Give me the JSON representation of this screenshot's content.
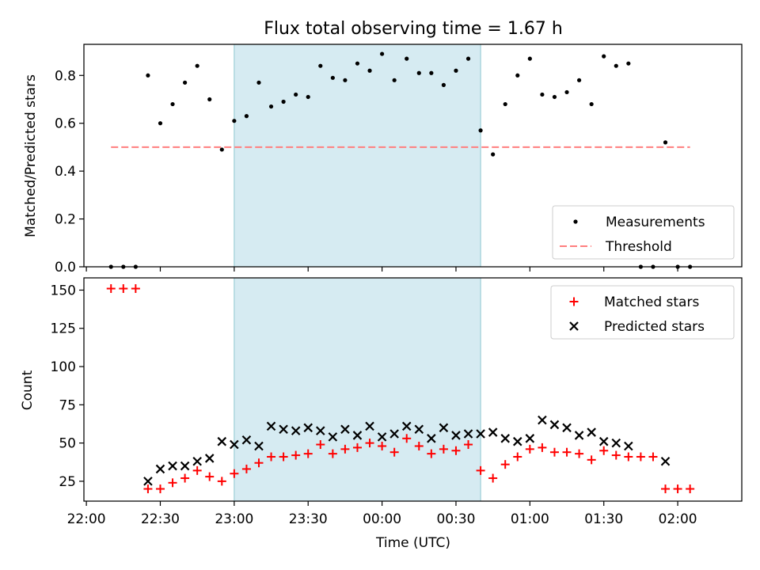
{
  "figure_title": "Flux total observing time = 1.67 h",
  "chart_data": [
    {
      "type": "scatter",
      "title": "Flux total observing time = 1.67 h",
      "xlabel": "",
      "ylabel": "Matched/Predicted stars",
      "xlim": [
        "21:59",
        "02:26"
      ],
      "ylim": [
        0,
        0.93
      ],
      "yticks": [
        "0.0",
        "0.2",
        "0.4",
        "0.6",
        "0.8"
      ],
      "shaded_span": [
        "23:00",
        "00:40"
      ],
      "legend_position": "lower right",
      "series": [
        {
          "name": "Measurements",
          "marker": "dot",
          "color": "#000000",
          "points": [
            [
              "22:10",
              0.0
            ],
            [
              "22:15",
              0.0
            ],
            [
              "22:20",
              0.0
            ],
            [
              "22:25",
              0.8
            ],
            [
              "22:30",
              0.6
            ],
            [
              "22:35",
              0.68
            ],
            [
              "22:40",
              0.77
            ],
            [
              "22:45",
              0.84
            ],
            [
              "22:50",
              0.7
            ],
            [
              "22:55",
              0.49
            ],
            [
              "23:00",
              0.61
            ],
            [
              "23:05",
              0.63
            ],
            [
              "23:10",
              0.77
            ],
            [
              "23:15",
              0.67
            ],
            [
              "23:20",
              0.69
            ],
            [
              "23:25",
              0.72
            ],
            [
              "23:30",
              0.71
            ],
            [
              "23:35",
              0.84
            ],
            [
              "23:40",
              0.79
            ],
            [
              "23:45",
              0.78
            ],
            [
              "23:50",
              0.85
            ],
            [
              "23:55",
              0.82
            ],
            [
              "00:00",
              0.89
            ],
            [
              "00:05",
              0.78
            ],
            [
              "00:10",
              0.87
            ],
            [
              "00:15",
              0.81
            ],
            [
              "00:20",
              0.81
            ],
            [
              "00:25",
              0.76
            ],
            [
              "00:30",
              0.82
            ],
            [
              "00:35",
              0.87
            ],
            [
              "00:40",
              0.57
            ],
            [
              "00:45",
              0.47
            ],
            [
              "00:50",
              0.68
            ],
            [
              "00:55",
              0.8
            ],
            [
              "01:00",
              0.87
            ],
            [
              "01:05",
              0.72
            ],
            [
              "01:10",
              0.71
            ],
            [
              "01:15",
              0.73
            ],
            [
              "01:20",
              0.78
            ],
            [
              "01:25",
              0.68
            ],
            [
              "01:30",
              0.88
            ],
            [
              "01:35",
              0.84
            ],
            [
              "01:40",
              0.85
            ],
            [
              "01:45",
              0.0
            ],
            [
              "01:50",
              0.0
            ],
            [
              "01:55",
              0.52
            ],
            [
              "02:00",
              0.0
            ],
            [
              "02:05",
              0.0
            ]
          ]
        },
        {
          "name": "Threshold",
          "marker": "dashed-line",
          "color": "#ff7f7f",
          "points": [
            [
              "22:10",
              0.5
            ],
            [
              "02:05",
              0.5
            ]
          ]
        }
      ]
    },
    {
      "type": "scatter",
      "title": "",
      "xlabel": "Time (UTC)",
      "ylabel": "Count",
      "xlim": [
        "21:59",
        "02:26"
      ],
      "ylim": [
        12,
        158
      ],
      "yticks": [
        "25",
        "50",
        "75",
        "100",
        "125",
        "150"
      ],
      "xticks": [
        "22:00",
        "22:30",
        "23:00",
        "23:30",
        "00:00",
        "00:30",
        "01:00",
        "01:30",
        "02:00"
      ],
      "shaded_span": [
        "23:00",
        "00:40"
      ],
      "legend_position": "upper right",
      "series": [
        {
          "name": "Matched stars",
          "marker": "plus",
          "color": "#ff0000",
          "points": [
            [
              "22:10",
              151
            ],
            [
              "22:15",
              151
            ],
            [
              "22:20",
              151
            ],
            [
              "22:25",
              20
            ],
            [
              "22:30",
              20
            ],
            [
              "22:35",
              24
            ],
            [
              "22:40",
              27
            ],
            [
              "22:45",
              32
            ],
            [
              "22:50",
              28
            ],
            [
              "22:55",
              25
            ],
            [
              "23:00",
              30
            ],
            [
              "23:05",
              33
            ],
            [
              "23:10",
              37
            ],
            [
              "23:15",
              41
            ],
            [
              "23:20",
              41
            ],
            [
              "23:25",
              42
            ],
            [
              "23:30",
              43
            ],
            [
              "23:35",
              49
            ],
            [
              "23:40",
              43
            ],
            [
              "23:45",
              46
            ],
            [
              "23:50",
              47
            ],
            [
              "23:55",
              50
            ],
            [
              "00:00",
              48
            ],
            [
              "00:05",
              44
            ],
            [
              "00:10",
              53
            ],
            [
              "00:15",
              48
            ],
            [
              "00:20",
              43
            ],
            [
              "00:25",
              46
            ],
            [
              "00:30",
              45
            ],
            [
              "00:35",
              49
            ],
            [
              "00:40",
              32
            ],
            [
              "00:45",
              27
            ],
            [
              "00:50",
              36
            ],
            [
              "00:55",
              41
            ],
            [
              "01:00",
              46
            ],
            [
              "01:05",
              47
            ],
            [
              "01:10",
              44
            ],
            [
              "01:15",
              44
            ],
            [
              "01:20",
              43
            ],
            [
              "01:25",
              39
            ],
            [
              "01:30",
              45
            ],
            [
              "01:35",
              42
            ],
            [
              "01:40",
              41
            ],
            [
              "01:45",
              41
            ],
            [
              "01:50",
              41
            ],
            [
              "01:55",
              20
            ],
            [
              "02:00",
              20
            ],
            [
              "02:05",
              20
            ]
          ]
        },
        {
          "name": "Predicted stars",
          "marker": "x",
          "color": "#000000",
          "points": [
            [
              "22:25",
              25
            ],
            [
              "22:30",
              33
            ],
            [
              "22:35",
              35
            ],
            [
              "22:40",
              35
            ],
            [
              "22:45",
              38
            ],
            [
              "22:50",
              40
            ],
            [
              "22:55",
              51
            ],
            [
              "23:00",
              49
            ],
            [
              "23:05",
              52
            ],
            [
              "23:10",
              48
            ],
            [
              "23:15",
              61
            ],
            [
              "23:20",
              59
            ],
            [
              "23:25",
              58
            ],
            [
              "23:30",
              60
            ],
            [
              "23:35",
              58
            ],
            [
              "23:40",
              54
            ],
            [
              "23:45",
              59
            ],
            [
              "23:50",
              55
            ],
            [
              "23:55",
              61
            ],
            [
              "00:00",
              54
            ],
            [
              "00:05",
              56
            ],
            [
              "00:10",
              61
            ],
            [
              "00:15",
              59
            ],
            [
              "00:20",
              53
            ],
            [
              "00:25",
              60
            ],
            [
              "00:30",
              55
            ],
            [
              "00:35",
              56
            ],
            [
              "00:40",
              56
            ],
            [
              "00:45",
              57
            ],
            [
              "00:50",
              53
            ],
            [
              "00:55",
              51
            ],
            [
              "01:00",
              53
            ],
            [
              "01:05",
              65
            ],
            [
              "01:10",
              62
            ],
            [
              "01:15",
              60
            ],
            [
              "01:20",
              55
            ],
            [
              "01:25",
              57
            ],
            [
              "01:30",
              51
            ],
            [
              "01:35",
              50
            ],
            [
              "01:40",
              48
            ],
            [
              "01:55",
              38
            ]
          ]
        }
      ]
    }
  ]
}
